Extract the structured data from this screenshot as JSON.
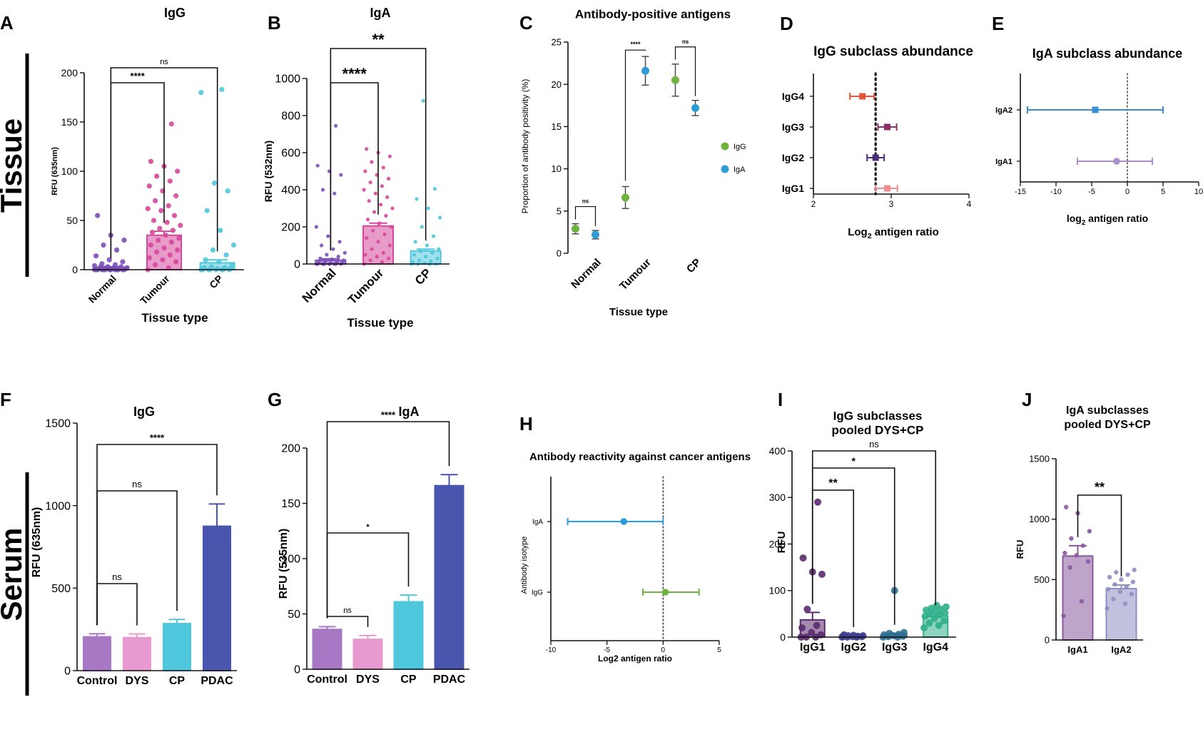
{
  "figure": {
    "row_labels": [
      "Tissue",
      "Serum"
    ],
    "colors": {
      "normal": "#7b4fb8",
      "tumour": "#d6489c",
      "cp": "#4fc7dc",
      "igg_green": "#6fb33f",
      "iga_blue": "#2c9bd6",
      "control": "#a878c4",
      "dys": "#e79ad0",
      "pdac": "#4a55ad"
    }
  },
  "chart_data": [
    {
      "id": "A",
      "panel_label": "A",
      "type": "bar",
      "title": "IgG",
      "xlabel": "Tissue type",
      "ylabel": "RFU (635nm)",
      "categories": [
        "Normal",
        "Tumour",
        "CP"
      ],
      "values": [
        2,
        35,
        7
      ],
      "errors": [
        1,
        4,
        3
      ],
      "ylim": [
        0,
        200
      ],
      "yticks": [
        0,
        50,
        100,
        150,
        200
      ],
      "points": [
        [
          0,
          0,
          0,
          0,
          0,
          0,
          0,
          0,
          0,
          0,
          0,
          0,
          0,
          1,
          1,
          1,
          1,
          2,
          2,
          2,
          3,
          3,
          3,
          4,
          5,
          6,
          8,
          10,
          14,
          20,
          25,
          30,
          35,
          55
        ],
        [
          0,
          2,
          5,
          8,
          10,
          12,
          15,
          18,
          20,
          22,
          25,
          28,
          30,
          32,
          35,
          38,
          40,
          42,
          45,
          48,
          50,
          55,
          60,
          62,
          65,
          70,
          75,
          80,
          85,
          90,
          95,
          100,
          105,
          110,
          148
        ],
        [
          0,
          0,
          0,
          0,
          0,
          0,
          0,
          0,
          1,
          1,
          2,
          2,
          3,
          5,
          8,
          10,
          15,
          20,
          25,
          40,
          60,
          80,
          88,
          180,
          183
        ]
      ],
      "comparisons": [
        {
          "from": 0,
          "to": 2,
          "label": "ns"
        },
        {
          "from": 0,
          "to": 1,
          "label": "****"
        }
      ]
    },
    {
      "id": "B",
      "panel_label": "B",
      "type": "bar",
      "title": "IgA",
      "xlabel": "Tissue type",
      "ylabel": "RFU (532nm)",
      "categories": [
        "Normal",
        "Tumour",
        "CP"
      ],
      "values": [
        20,
        205,
        70
      ],
      "errors": [
        8,
        15,
        10
      ],
      "ylim": [
        0,
        1000
      ],
      "yticks": [
        0,
        200,
        400,
        600,
        800,
        1000
      ],
      "points": [
        [
          0,
          0,
          0,
          0,
          0,
          0,
          0,
          0,
          5,
          5,
          10,
          10,
          15,
          20,
          25,
          30,
          40,
          50,
          60,
          80,
          100,
          120,
          150,
          200,
          380,
          400,
          480,
          500,
          530,
          745
        ],
        [
          0,
          10,
          20,
          30,
          40,
          50,
          60,
          80,
          100,
          120,
          140,
          160,
          180,
          200,
          220,
          240,
          260,
          280,
          300,
          320,
          340,
          360,
          380,
          400,
          420,
          440,
          460,
          480,
          500,
          520,
          550,
          580,
          600,
          620
        ],
        [
          0,
          0,
          0,
          0,
          5,
          10,
          15,
          20,
          30,
          40,
          50,
          60,
          70,
          80,
          100,
          120,
          150,
          200,
          250,
          300,
          350,
          405,
          880
        ]
      ],
      "comparisons": [
        {
          "from": 0,
          "to": 1,
          "label": "****"
        },
        {
          "from": 0,
          "to": 2,
          "label": "**"
        }
      ]
    },
    {
      "id": "C",
      "panel_label": "C",
      "type": "scatter",
      "title": "Antibody-positive antigens",
      "xlabel": "Tissue type",
      "ylabel": "Proportion of antibody positivity (%)",
      "categories": [
        "Normal",
        "Tumour",
        "CP"
      ],
      "ylim": [
        0,
        25
      ],
      "yticks": [
        0,
        5,
        10,
        15,
        20,
        25
      ],
      "series": [
        {
          "name": "IgG",
          "color": "#6fb33f",
          "values": [
            2.9,
            6.6,
            20.5
          ],
          "errors": [
            0.6,
            1.3,
            1.9
          ]
        },
        {
          "name": "IgA",
          "color": "#2c9bd6",
          "values": [
            2.2,
            21.6,
            17.2
          ],
          "errors": [
            0.5,
            1.7,
            0.9
          ]
        }
      ],
      "comparisons": [
        {
          "cat": 0,
          "label": "ns"
        },
        {
          "cat": 1,
          "label": "****"
        },
        {
          "cat": 2,
          "label": "ns"
        }
      ]
    },
    {
      "id": "D",
      "panel_label": "D",
      "type": "forest",
      "title": "IgG subclass abundance",
      "xlabel": "Log",
      "xlabel_sub": "2",
      "xlabel_rest": " antigen ratio",
      "xlim": [
        2,
        4
      ],
      "xticks": [
        2,
        3,
        4
      ],
      "reference": 2.8,
      "rows": [
        {
          "label": "IgG4",
          "value": 2.63,
          "low": 2.47,
          "high": 2.78,
          "color": "#e4553f"
        },
        {
          "label": "IgG3",
          "value": 2.95,
          "low": 2.83,
          "high": 3.07,
          "color": "#8b2f66"
        },
        {
          "label": "IgG2",
          "value": 2.8,
          "low": 2.69,
          "high": 2.91,
          "color": "#4a2d7a"
        },
        {
          "label": "IgG1",
          "value": 2.95,
          "low": 2.8,
          "high": 3.08,
          "color": "#f08c92"
        }
      ]
    },
    {
      "id": "E",
      "panel_label": "E",
      "type": "forest",
      "title": "IgA subclass abundance",
      "xlabel": "log",
      "xlabel_sub": "2",
      "xlabel_rest": " antigen ratio",
      "xlim": [
        -15,
        10
      ],
      "xticks": [
        -15,
        -10,
        -5,
        0,
        5,
        10
      ],
      "reference": 0,
      "rows": [
        {
          "label": "IgA2",
          "value": -4.5,
          "low": -14,
          "high": 5,
          "color": "#3a8fd1"
        },
        {
          "label": "IgA1",
          "value": -1.5,
          "low": -7,
          "high": 3.5,
          "color": "#a98fd0"
        }
      ]
    },
    {
      "id": "F",
      "panel_label": "F",
      "type": "bar",
      "title": "IgG",
      "xlabel": "",
      "ylabel": "RFU (635nm)",
      "categories": [
        "Control",
        "DYS",
        "CP",
        "PDAC"
      ],
      "values": [
        205,
        200,
        285,
        875
      ],
      "errors": [
        18,
        22,
        25,
        135
      ],
      "ylim": [
        0,
        1500
      ],
      "yticks": [
        0,
        500,
        1000,
        1500
      ],
      "comparisons": [
        {
          "from": 0,
          "to": 1,
          "label": "ns"
        },
        {
          "from": 0,
          "to": 2,
          "label": "ns"
        },
        {
          "from": 0,
          "to": 3,
          "label": "****"
        }
      ]
    },
    {
      "id": "G",
      "panel_label": "G",
      "type": "bar",
      "title": "IgA",
      "xlabel": "",
      "ylabel": "RFU (535nm)",
      "categories": [
        "Control",
        "DYS",
        "CP",
        "PDAC"
      ],
      "values": [
        36,
        27,
        61,
        166
      ],
      "errors": [
        2.5,
        3.5,
        6,
        10
      ],
      "ylim": [
        0,
        200
      ],
      "yticks": [
        0,
        50,
        100,
        150,
        200
      ],
      "comparisons": [
        {
          "from": 0,
          "to": 1,
          "label": "ns"
        },
        {
          "from": 0,
          "to": 2,
          "label": "*"
        },
        {
          "from": 0,
          "to": 3,
          "label": "****"
        }
      ]
    },
    {
      "id": "H",
      "panel_label": "H",
      "type": "forest",
      "title": "Antibody reactivity against cancer antigens",
      "xlabel": "Log2 antigen ratio",
      "ylabel": "Antibody isotype",
      "xlim": [
        -10,
        5
      ],
      "xticks": [
        -10,
        -5,
        0,
        5
      ],
      "reference": 0,
      "rows": [
        {
          "label": "IgA",
          "value": -3.5,
          "low": -8.5,
          "high": 0,
          "color": "#2c9bd6"
        },
        {
          "label": "IgG",
          "value": 0.2,
          "low": -1.8,
          "high": 3.2,
          "color": "#6fb33f"
        }
      ]
    },
    {
      "id": "I",
      "panel_label": "I",
      "type": "bar",
      "title": [
        "IgG subclasses",
        "pooled DYS+CP"
      ],
      "xlabel": "",
      "ylabel": "RFU",
      "categories": [
        "IgG1",
        "IgG2",
        "IgG3",
        "IgG4"
      ],
      "values": [
        37,
        2,
        5,
        45
      ],
      "errors": [
        16,
        1,
        3,
        5
      ],
      "ylim": [
        0,
        400
      ],
      "yticks": [
        0,
        100,
        200,
        300,
        400
      ],
      "colors": [
        "#5a2a6e",
        "#3d3f8f",
        "#2f6f8f",
        "#2fae8a"
      ],
      "points": [
        [
          0,
          0,
          0,
          5,
          10,
          20,
          25,
          60,
          135,
          140,
          170,
          290
        ],
        [
          0,
          0,
          0,
          1,
          1,
          2,
          2,
          3,
          3,
          4,
          5
        ],
        [
          0,
          0,
          1,
          2,
          3,
          5,
          6,
          8,
          10,
          100
        ],
        [
          20,
          25,
          30,
          35,
          40,
          45,
          48,
          50,
          52,
          55,
          58,
          60,
          62,
          65,
          68
        ]
      ],
      "comparisons": [
        {
          "from": 0,
          "to": 1,
          "label": "**"
        },
        {
          "from": 0,
          "to": 2,
          "label": "*"
        },
        {
          "from": 0,
          "to": 3,
          "label": "ns"
        }
      ]
    },
    {
      "id": "J",
      "panel_label": "J",
      "type": "bar",
      "title": [
        "IgA subclasses",
        "pooled DYS+CP"
      ],
      "xlabel": "",
      "ylabel": "RFU",
      "categories": [
        "IgA1",
        "IgA2"
      ],
      "values": [
        695,
        425
      ],
      "errors": [
        85,
        30
      ],
      "ylim": [
        0,
        1500
      ],
      "yticks": [
        0,
        500,
        1000,
        1500
      ],
      "colors": [
        "#8a5a9e",
        "#8f8fc4"
      ],
      "points": [
        [
          200,
          320,
          600,
          650,
          700,
          720,
          780,
          840,
          900,
          1050,
          1100
        ],
        [
          260,
          300,
          340,
          380,
          400,
          420,
          440,
          460,
          480,
          500,
          520,
          540,
          560,
          580
        ]
      ],
      "comparisons": [
        {
          "from": 0,
          "to": 1,
          "label": "**"
        }
      ]
    }
  ]
}
